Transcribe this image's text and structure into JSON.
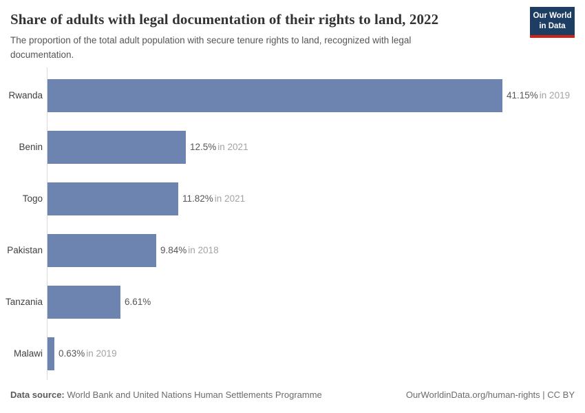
{
  "header": {
    "title": "Share of adults with legal documentation of their rights to land, 2022",
    "subtitle": "The proportion of the total adult population with secure tenure rights to land, recognized with legal documentation.",
    "logo": {
      "line1": "Our World",
      "line2": "in Data"
    }
  },
  "chart_data": {
    "type": "bar",
    "orientation": "horizontal",
    "categories": [
      "Rwanda",
      "Benin",
      "Togo",
      "Pakistan",
      "Tanzania",
      "Malawi"
    ],
    "values": [
      41.15,
      12.5,
      11.82,
      9.84,
      6.61,
      0.63
    ],
    "value_labels": [
      "41.15%",
      "12.5%",
      "11.82%",
      "9.84%",
      "6.61%",
      "0.63%"
    ],
    "year_notes": [
      "in 2019",
      "in 2021",
      "in 2021",
      "in 2018",
      "",
      "in 2019"
    ],
    "title": "Share of adults with legal documentation of their rights to land, 2022",
    "xlabel": "",
    "ylabel": "",
    "xlim": [
      0,
      41.15
    ],
    "grid": false,
    "legend": false,
    "bar_color": "#6d84b0"
  },
  "colors": {
    "bar": "#6d84b0",
    "logo_navy": "#1d3d63",
    "logo_red": "#cd2618",
    "axis_line": "#d9d9d9",
    "value_text": "#565656",
    "year_text": "#a3a3a3"
  },
  "footer": {
    "source_label": "Data source:",
    "source_text": " World Bank and United Nations Human Settlements Programme",
    "attribution": "OurWorldinData.org/human-rights | CC BY"
  }
}
